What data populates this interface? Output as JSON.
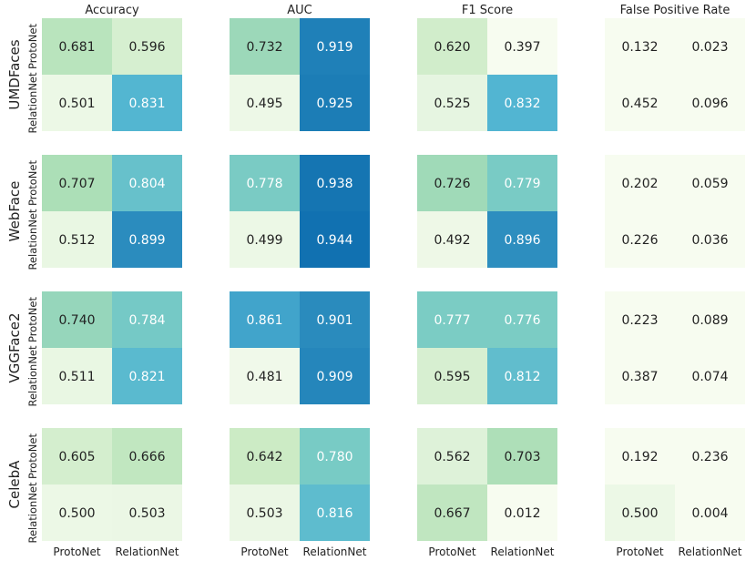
{
  "chart_data": {
    "type": "heatmap",
    "colors": {
      "low": "#f7fcf0",
      "mid": "#a8ddb5",
      "high": "#0868ac"
    },
    "vmin": 0.45,
    "vmax": 0.96,
    "column_titles": [
      "Accuracy",
      "AUC",
      "F1 Score",
      "False Positive Rate"
    ],
    "row_titles": [
      "UMDFaces",
      "WebFace",
      "VGGFace2",
      "CelebA"
    ],
    "tick_labels": [
      "ProtoNet",
      "RelationNet"
    ],
    "panels": [
      [
        [
          [
            0.681,
            0.596
          ],
          [
            0.501,
            0.831
          ]
        ],
        [
          [
            0.732,
            0.919
          ],
          [
            0.495,
            0.925
          ]
        ],
        [
          [
            0.62,
            0.397
          ],
          [
            0.525,
            0.832
          ]
        ],
        [
          [
            0.132,
            0.023
          ],
          [
            0.452,
            0.096
          ]
        ]
      ],
      [
        [
          [
            0.707,
            0.804
          ],
          [
            0.512,
            0.899
          ]
        ],
        [
          [
            0.778,
            0.938
          ],
          [
            0.499,
            0.944
          ]
        ],
        [
          [
            0.726,
            0.779
          ],
          [
            0.492,
            0.896
          ]
        ],
        [
          [
            0.202,
            0.059
          ],
          [
            0.226,
            0.036
          ]
        ]
      ],
      [
        [
          [
            0.74,
            0.784
          ],
          [
            0.511,
            0.821
          ]
        ],
        [
          [
            0.861,
            0.901
          ],
          [
            0.481,
            0.909
          ]
        ],
        [
          [
            0.777,
            0.776
          ],
          [
            0.595,
            0.812
          ]
        ],
        [
          [
            0.223,
            0.089
          ],
          [
            0.387,
            0.074
          ]
        ]
      ],
      [
        [
          [
            0.605,
            0.666
          ],
          [
            0.5,
            0.503
          ]
        ],
        [
          [
            0.642,
            0.78
          ],
          [
            0.503,
            0.816
          ]
        ],
        [
          [
            0.562,
            0.703
          ],
          [
            0.667,
            0.012
          ]
        ],
        [
          [
            0.192,
            0.236
          ],
          [
            0.5,
            0.004
          ]
        ]
      ]
    ]
  }
}
